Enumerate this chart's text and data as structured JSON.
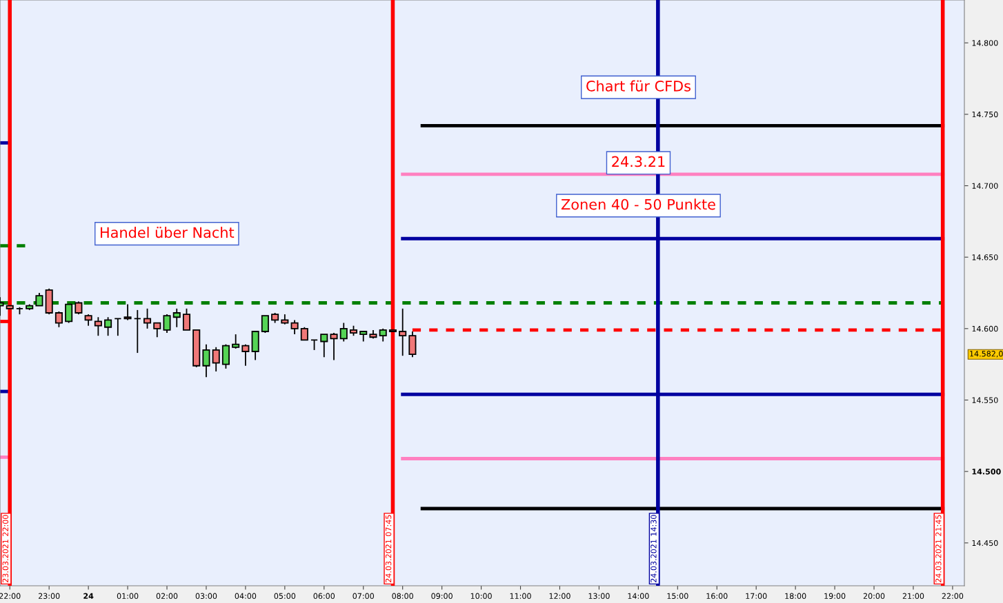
{
  "chart_data": {
    "type": "candlestick",
    "x": [
      "2021-03-23T21:45",
      "2021-03-23T22:00",
      "2021-03-23T22:15",
      "2021-03-23T22:30",
      "2021-03-23T22:45",
      "2021-03-23T23:00",
      "2021-03-23T23:15",
      "2021-03-23T23:30",
      "2021-03-23T23:45",
      "2021-03-24T00:00",
      "2021-03-24T00:15",
      "2021-03-24T00:30",
      "2021-03-24T00:45",
      "2021-03-24T01:00",
      "2021-03-24T01:15",
      "2021-03-24T01:30",
      "2021-03-24T01:45",
      "2021-03-24T02:00",
      "2021-03-24T02:15",
      "2021-03-24T02:30",
      "2021-03-24T02:45",
      "2021-03-24T03:00",
      "2021-03-24T03:15",
      "2021-03-24T03:30",
      "2021-03-24T03:45",
      "2021-03-24T04:00",
      "2021-03-24T04:15",
      "2021-03-24T04:30",
      "2021-03-24T04:45",
      "2021-03-24T05:00",
      "2021-03-24T05:15",
      "2021-03-24T05:30",
      "2021-03-24T05:45",
      "2021-03-24T06:00",
      "2021-03-24T06:15",
      "2021-03-24T06:30",
      "2021-03-24T06:45",
      "2021-03-24T07:00",
      "2021-03-24T07:15",
      "2021-03-24T07:30",
      "2021-03-24T07:45",
      "2021-03-24T08:00",
      "2021-03-24T08:15"
    ],
    "ohlc": [
      [
        14616,
        14622,
        14609,
        14618
      ],
      [
        14616,
        14616,
        14614,
        14614
      ],
      [
        14614,
        14615,
        14610,
        14614
      ],
      [
        14614,
        14617,
        14613,
        14616
      ],
      [
        14616,
        14625,
        14616,
        14623
      ],
      [
        14627,
        14628,
        14610,
        14611
      ],
      [
        14611,
        14612,
        14601,
        14604
      ],
      [
        14605,
        14617,
        14604,
        14617
      ],
      [
        14618,
        14619,
        14610,
        14611
      ],
      [
        14609,
        14610,
        14602,
        14606
      ],
      [
        14605,
        14608,
        14595,
        14602
      ],
      [
        14601,
        14608,
        14595,
        14606
      ],
      [
        14607,
        14607,
        14595,
        14607
      ],
      [
        14608,
        14617,
        14606,
        14607
      ],
      [
        14607,
        14613,
        14583,
        14607
      ],
      [
        14607,
        14614,
        14600,
        14604
      ],
      [
        14604,
        14604,
        14594,
        14600
      ],
      [
        14599,
        14610,
        14597,
        14609
      ],
      [
        14608,
        14614,
        14601,
        14611
      ],
      [
        14610,
        14614,
        14599,
        14599
      ],
      [
        14599,
        14599,
        14573,
        14574
      ],
      [
        14574,
        14589,
        14566,
        14585
      ],
      [
        14585,
        14587,
        14570,
        14576
      ],
      [
        14575,
        14589,
        14572,
        14588
      ],
      [
        14587,
        14596,
        14586,
        14589
      ],
      [
        14588,
        14589,
        14574,
        14584
      ],
      [
        14584,
        14598,
        14578,
        14598
      ],
      [
        14598,
        14609,
        14597,
        14609
      ],
      [
        14610,
        14611,
        14604,
        14606
      ],
      [
        14606,
        14610,
        14603,
        14604
      ],
      [
        14604,
        14606,
        14596,
        14600
      ],
      [
        14600,
        14601,
        14592,
        14592
      ],
      [
        14592,
        14592,
        14585,
        14592
      ],
      [
        14591,
        14596,
        14580,
        14596
      ],
      [
        14596,
        14597,
        14578,
        14593
      ],
      [
        14593,
        14604,
        14591,
        14600
      ],
      [
        14599,
        14602,
        14595,
        14597
      ],
      [
        14596,
        14598,
        14591,
        14598
      ],
      [
        14596,
        14599,
        14593,
        14594
      ],
      [
        14595,
        14600,
        14591,
        14599
      ],
      [
        14599,
        14599,
        14598,
        14598
      ],
      [
        14598,
        14614,
        14581,
        14595
      ],
      [
        14595,
        14598,
        14580,
        14582
      ]
    ],
    "series": [
      {
        "type": "line",
        "color": "#000000",
        "x": [
          "2021-03-24T08:30",
          "2021-03-24T21:45"
        ],
        "values": [
          14742,
          14742
        ]
      },
      {
        "type": "line",
        "color": "#ff80c0",
        "x": [
          "2021-03-24T08:00",
          "2021-03-24T21:45"
        ],
        "values": [
          14708,
          14708
        ]
      },
      {
        "type": "line",
        "color": "#0000a0",
        "x": [
          "2021-03-24T08:00",
          "2021-03-24T21:45"
        ],
        "values": [
          14663,
          14663
        ]
      },
      {
        "type": "line",
        "color": "#008000",
        "line_style": "dashed",
        "x": [
          "2021-03-23T21:45",
          "2021-03-24T21:45"
        ],
        "values": [
          14618,
          14618
        ]
      },
      {
        "type": "line",
        "color": "#ff0000",
        "line_style": "dashed",
        "x": [
          "2021-03-24T08:15",
          "2021-03-24T21:45"
        ],
        "values": [
          14599,
          14599
        ]
      },
      {
        "type": "line",
        "color": "#0000a0",
        "x": [
          "2021-03-24T08:00",
          "2021-03-24T21:45"
        ],
        "values": [
          14554,
          14554
        ]
      },
      {
        "type": "line",
        "color": "#ff80c0",
        "x": [
          "2021-03-24T08:00",
          "2021-03-24T21:45"
        ],
        "values": [
          14509,
          14509
        ]
      },
      {
        "type": "line",
        "color": "#000000",
        "x": [
          "2021-03-24T08:30",
          "2021-03-24T21:45"
        ],
        "values": [
          14474,
          14474
        ]
      },
      {
        "type": "line",
        "color": "#0000a0",
        "x": [
          "2021-03-23T21:45",
          "2021-03-23T22:00"
        ],
        "values": [
          14730,
          14730
        ]
      },
      {
        "type": "line",
        "color": "#008000",
        "line_style": "dashed",
        "x": [
          "2021-03-23T21:45",
          "2021-03-23T22:24"
        ],
        "values": [
          14658,
          14658
        ]
      },
      {
        "type": "line",
        "color": "#ff0000",
        "line_style": "dashed",
        "x": [
          "2021-03-23T21:45",
          "2021-03-23T22:06"
        ],
        "values": [
          14605,
          14605
        ]
      },
      {
        "type": "line",
        "color": "#0000a0",
        "x": [
          "2021-03-23T21:45",
          "2021-03-23T22:00"
        ],
        "values": [
          14556,
          14556
        ]
      },
      {
        "type": "line",
        "color": "#ff80c0",
        "x": [
          "2021-03-23T21:45",
          "2021-03-23T22:00"
        ],
        "values": [
          14510,
          14510
        ]
      }
    ],
    "ref_lines": [
      {
        "axis": "x",
        "value": "2021-03-23T22:00",
        "label": "23.03.2021 22:00",
        "color": "#ff0000"
      },
      {
        "axis": "x",
        "value": "2021-03-24T07:45",
        "label": "24.03.2021 07:45",
        "color": "#ff0000"
      },
      {
        "axis": "x",
        "value": "2021-03-24T14:30",
        "label": "24.03.2021 14:30",
        "color": "#0000a0"
      },
      {
        "axis": "x",
        "value": "2021-03-24T21:45",
        "label": "24.03.2021 21:45",
        "color": "#ff0000"
      }
    ],
    "annotations": [
      "Chart für CFDs",
      "24.3.21",
      "Zonen 40 - 50 Punkte",
      "Handel über Nacht",
      "14.582,0"
    ],
    "xlim": [
      "2021-03-23T21:45",
      "2021-03-24T22:18"
    ],
    "xticks": [
      {
        "value": "2021-03-23T22:00",
        "label": "22:00"
      },
      {
        "value": "2021-03-23T23:00",
        "label": "23:00"
      },
      {
        "value": "2021-03-24T00:00",
        "label": "24"
      },
      {
        "value": "2021-03-24T01:00",
        "label": "01:00"
      },
      {
        "value": "2021-03-24T02:00",
        "label": "02:00"
      },
      {
        "value": "2021-03-24T03:00",
        "label": "03:00"
      },
      {
        "value": "2021-03-24T04:00",
        "label": "04:00"
      },
      {
        "value": "2021-03-24T05:00",
        "label": "05:00"
      },
      {
        "value": "2021-03-24T06:00",
        "label": "06:00"
      },
      {
        "value": "2021-03-24T07:00",
        "label": "07:00"
      },
      {
        "value": "2021-03-24T08:00",
        "label": "08:00"
      },
      {
        "value": "2021-03-24T09:00",
        "label": "09:00"
      },
      {
        "value": "2021-03-24T10:00",
        "label": "10:00"
      },
      {
        "value": "2021-03-24T11:00",
        "label": "11:00"
      },
      {
        "value": "2021-03-24T12:00",
        "label": "12:00"
      },
      {
        "value": "2021-03-24T13:00",
        "label": "13:00"
      },
      {
        "value": "2021-03-24T14:00",
        "label": "14:00"
      },
      {
        "value": "2021-03-24T15:00",
        "label": "15:00"
      },
      {
        "value": "2021-03-24T16:00",
        "label": "16:00"
      },
      {
        "value": "2021-03-24T17:00",
        "label": "17:00"
      },
      {
        "value": "2021-03-24T18:00",
        "label": "18:00"
      },
      {
        "value": "2021-03-24T19:00",
        "label": "19:00"
      },
      {
        "value": "2021-03-24T20:00",
        "label": "20:00"
      },
      {
        "value": "2021-03-24T21:00",
        "label": "21:00"
      },
      {
        "value": "2021-03-24T22:00",
        "label": "22:00"
      }
    ],
    "ylim": [
      14420,
      14830
    ],
    "yticks": [
      {
        "value": 14450,
        "label": "14.450"
      },
      {
        "value": 14500,
        "label": "14.500"
      },
      {
        "value": 14550,
        "label": "14.550"
      },
      {
        "value": 14600,
        "label": "14.600"
      },
      {
        "value": 14650,
        "label": "14.650"
      },
      {
        "value": 14700,
        "label": "14.700"
      },
      {
        "value": 14750,
        "label": "14.750"
      },
      {
        "value": 14800,
        "label": "14.800"
      }
    ],
    "grid": false,
    "legend": false
  }
}
